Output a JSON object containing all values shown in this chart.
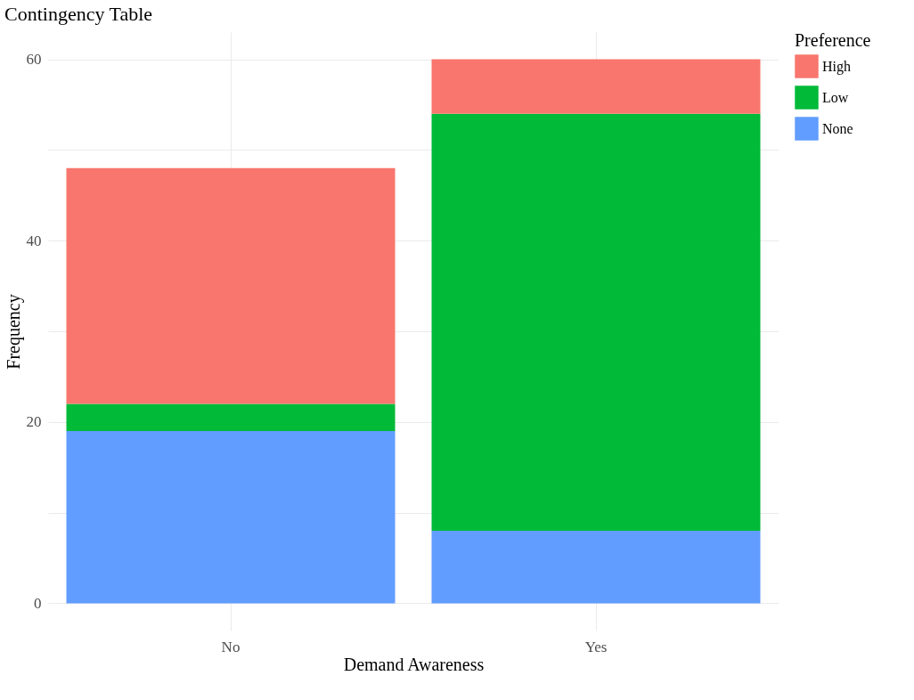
{
  "chart_data": {
    "type": "bar",
    "title": "Contingency Table",
    "xlabel": "Demand Awareness",
    "ylabel": "Frequency",
    "legend_title": "Preference",
    "categories": [
      "No",
      "Yes"
    ],
    "stacked": true,
    "series": [
      {
        "name": "None",
        "color": "#619cff",
        "values": [
          19,
          8
        ]
      },
      {
        "name": "Low",
        "color": "#00ba38",
        "values": [
          3,
          46
        ]
      },
      {
        "name": "High",
        "color": "#f8766d",
        "values": [
          26,
          6
        ]
      }
    ],
    "ylim": [
      -3,
      63
    ],
    "yticks": [
      0,
      {
        "value": 10,
        "label": null
      },
      20,
      {
        "value": 30,
        "label": null
      },
      40,
      {
        "value": 50,
        "label": null
      },
      60
    ],
    "grid": true,
    "legend": "right"
  }
}
